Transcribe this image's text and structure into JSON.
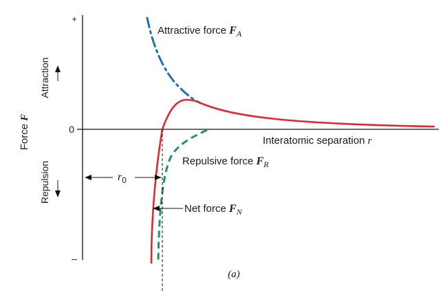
{
  "axes": {
    "y_label_prefix": "Force ",
    "y_label_var": "F",
    "y_plus": "+",
    "y_zero": "0",
    "y_minus": "–",
    "attraction": "Attraction",
    "repulsion": "Repulsion",
    "x_label_prefix": "Interatomic separation ",
    "x_label_var": "r"
  },
  "labels": {
    "attractive_prefix": "Attractive force ",
    "attractive_var": "F",
    "attractive_sub": "A",
    "repulsive_prefix": "Repulsive force ",
    "repulsive_var": "F",
    "repulsive_sub": "R",
    "net_prefix": "Net force ",
    "net_var": "F",
    "net_sub": "N",
    "r0_var": "r",
    "r0_sub": "0",
    "caption": "(a)"
  },
  "colors": {
    "attractive": "#1f6fb2",
    "repulsive": "#1e9460",
    "net": "#e0262f",
    "axis": "#111111"
  }
}
